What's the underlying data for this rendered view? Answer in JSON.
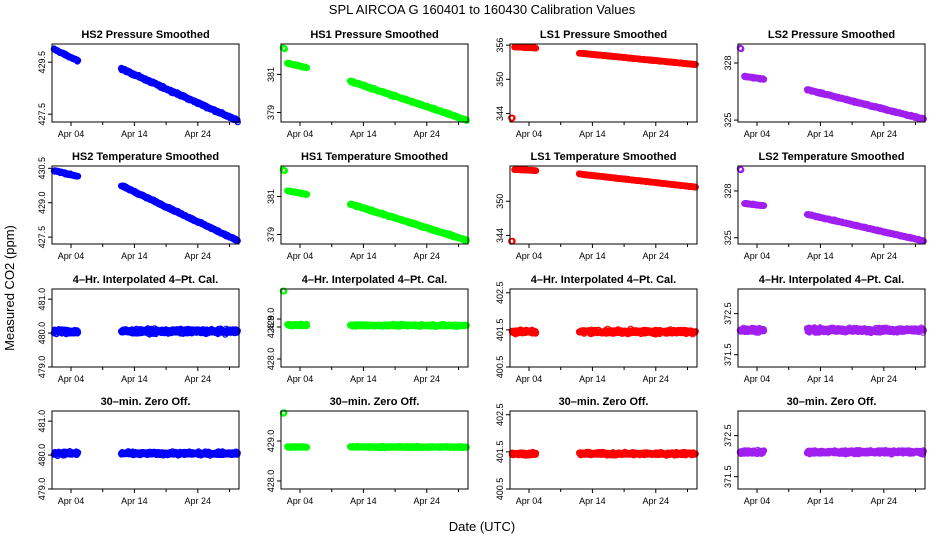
{
  "title": "SPL   AIRCOA G   160401 to 160430   Calibration Values",
  "xlabel": "Date (UTC)",
  "ylabel": "Measured CO2 (ppm)",
  "chart_data": {
    "type": "scatter",
    "x_unit": "day of April 2016",
    "xlim": [
      1,
      30.5
    ],
    "x_ticks": [
      {
        "value": 4,
        "label": "Apr 04"
      },
      {
        "value": 14,
        "label": "Apr 14"
      },
      {
        "value": 24,
        "label": "Apr 24"
      }
    ],
    "columns": [
      {
        "name": "HS2",
        "color": "#0000ff"
      },
      {
        "name": "HS1",
        "color": "#00ff00"
      },
      {
        "name": "LS1",
        "color": "#ff0000"
      },
      {
        "name": "LS2",
        "color": "#a020f0"
      }
    ],
    "gap": [
      5.3,
      11.7
    ],
    "panels": [
      {
        "title": "HS2 Pressure Smoothed",
        "row": 0,
        "col": 0,
        "ylim": [
          427.2,
          430.2
        ],
        "yticks": [
          427.5,
          429.5
        ],
        "segments": [
          {
            "x": [
              1.3,
              5.1
            ],
            "y": [
              430.0,
              429.55
            ],
            "noise": 0.05
          },
          {
            "x": [
              11.9,
              30.3
            ],
            "y": [
              429.25,
              427.25
            ],
            "noise": 0.06
          }
        ]
      },
      {
        "title": "HS1 Pressure Smoothed",
        "row": 0,
        "col": 1,
        "ylim": [
          378.5,
          382.6
        ],
        "yticks": [
          379,
          381
        ],
        "segments": [
          {
            "x": [
              1.3,
              1.6
            ],
            "y": [
              382.4,
              382.35
            ],
            "noise": 0.03
          },
          {
            "x": [
              2.0,
              5.1
            ],
            "y": [
              381.6,
              381.35
            ],
            "noise": 0.05
          },
          {
            "x": [
              11.9,
              30.3
            ],
            "y": [
              380.65,
              378.6
            ],
            "noise": 0.07
          }
        ]
      },
      {
        "title": "LS1 Pressure Smoothed",
        "row": 0,
        "col": 2,
        "ylim": [
          342.5,
          356.2
        ],
        "yticks": [
          344,
          350,
          356
        ],
        "segments": [
          {
            "x": [
              1.2,
              1.4
            ],
            "y": [
              343.2,
              343.2
            ],
            "noise": 0.05
          },
          {
            "x": [
              1.7,
              5.1
            ],
            "y": [
              355.7,
              355.5
            ],
            "noise": 0.08
          },
          {
            "x": [
              11.9,
              30.3
            ],
            "y": [
              354.6,
              352.6
            ],
            "noise": 0.1
          }
        ]
      },
      {
        "title": "LS2 Pressure Smoothed",
        "row": 0,
        "col": 3,
        "ylim": [
          324.9,
          329.0
        ],
        "yticks": [
          325,
          328
        ],
        "segments": [
          {
            "x": [
              1.3,
              1.5
            ],
            "y": [
              328.8,
              328.75
            ],
            "noise": 0.03
          },
          {
            "x": [
              2.0,
              5.1
            ],
            "y": [
              327.3,
              327.15
            ],
            "noise": 0.05
          },
          {
            "x": [
              11.9,
              30.3
            ],
            "y": [
              326.6,
              325.05
            ],
            "noise": 0.06
          }
        ]
      },
      {
        "title": "HS2 Temperature Smoothed",
        "row": 1,
        "col": 0,
        "ylim": [
          427.2,
          430.6
        ],
        "yticks": [
          427.5,
          429.0,
          430.5
        ],
        "segments": [
          {
            "x": [
              1.3,
              5.1
            ],
            "y": [
              430.4,
              430.15
            ],
            "noise": 0.05
          },
          {
            "x": [
              11.9,
              30.3
            ],
            "y": [
              429.75,
              427.35
            ],
            "noise": 0.06
          }
        ]
      },
      {
        "title": "HS1 Temperature Smoothed",
        "row": 1,
        "col": 1,
        "ylim": [
          378.5,
          382.6
        ],
        "yticks": [
          379,
          381
        ],
        "segments": [
          {
            "x": [
              1.3,
              1.6
            ],
            "y": [
              382.4,
              382.35
            ],
            "noise": 0.03
          },
          {
            "x": [
              2.0,
              5.1
            ],
            "y": [
              381.3,
              381.1
            ],
            "noise": 0.05
          },
          {
            "x": [
              11.9,
              30.3
            ],
            "y": [
              380.6,
              378.7
            ],
            "noise": 0.07
          }
        ]
      },
      {
        "title": "LS1 Temperature Smoothed",
        "row": 1,
        "col": 2,
        "ylim": [
          342.5,
          356.2
        ],
        "yticks": [
          344,
          350
        ],
        "segments": [
          {
            "x": [
              1.2,
              1.4
            ],
            "y": [
              343.0,
              343.0
            ],
            "noise": 0.05
          },
          {
            "x": [
              1.7,
              5.1
            ],
            "y": [
              355.6,
              355.4
            ],
            "noise": 0.08
          },
          {
            "x": [
              11.9,
              30.3
            ],
            "y": [
              354.8,
              352.5
            ],
            "noise": 0.1
          }
        ]
      },
      {
        "title": "LS2 Temperature Smoothed",
        "row": 1,
        "col": 3,
        "ylim": [
          324.6,
          329.6
        ],
        "yticks": [
          325,
          328
        ],
        "segments": [
          {
            "x": [
              1.3,
              1.5
            ],
            "y": [
              329.4,
              329.35
            ],
            "noise": 0.03
          },
          {
            "x": [
              2.0,
              5.1
            ],
            "y": [
              327.2,
              327.05
            ],
            "noise": 0.05
          },
          {
            "x": [
              11.9,
              30.3
            ],
            "y": [
              326.5,
              324.8
            ],
            "noise": 0.06
          }
        ]
      },
      {
        "title": "4–Hr. Interpolated 4–Pt. Cal.",
        "row": 2,
        "col": 0,
        "ylim": [
          479.0,
          481.3
        ],
        "yticks": [
          479.0,
          480.0,
          481.0
        ],
        "segments": [
          {
            "x": [
              1.3,
              5.1
            ],
            "y": [
              480.05,
              480.05
            ],
            "noise": 0.1
          },
          {
            "x": [
              11.9,
              30.3
            ],
            "y": [
              480.05,
              480.05
            ],
            "noise": 0.1
          }
        ]
      },
      {
        "title": "4–Hr. Interpolated 4–Pt. Cal.",
        "row": 2,
        "col": 1,
        "ylim": [
          427.8,
          429.75
        ],
        "yticks": [
          428.0,
          428.8,
          429.0
        ],
        "segments": [
          {
            "x": [
              1.3,
              1.5
            ],
            "y": [
              429.7,
              429.7
            ],
            "noise": 0.02
          },
          {
            "x": [
              2.0,
              5.1
            ],
            "y": [
              428.85,
              428.85
            ],
            "noise": 0.04
          },
          {
            "x": [
              11.9,
              30.3
            ],
            "y": [
              428.84,
              428.84
            ],
            "noise": 0.04
          }
        ]
      },
      {
        "title": "4–Hr. Interpolated 4–Pt. Cal.",
        "row": 2,
        "col": 2,
        "ylim": [
          400.5,
          402.6
        ],
        "yticks": [
          400.5,
          401.5,
          402.5
        ],
        "segments": [
          {
            "x": [
              1.3,
              5.1
            ],
            "y": [
              401.45,
              401.45
            ],
            "noise": 0.08
          },
          {
            "x": [
              11.9,
              30.3
            ],
            "y": [
              401.45,
              401.45
            ],
            "noise": 0.08
          }
        ]
      },
      {
        "title": "4–Hr. Interpolated 4–Pt. Cal.",
        "row": 2,
        "col": 3,
        "ylim": [
          371.2,
          373.1
        ],
        "yticks": [
          371.5,
          372.5
        ],
        "segments": [
          {
            "x": [
              1.3,
              5.1
            ],
            "y": [
              372.1,
              372.1
            ],
            "noise": 0.08
          },
          {
            "x": [
              11.9,
              30.3
            ],
            "y": [
              372.1,
              372.1
            ],
            "noise": 0.08
          }
        ]
      },
      {
        "title": "30–min. Zero Off.",
        "row": 3,
        "col": 0,
        "ylim": [
          479.0,
          481.3
        ],
        "yticks": [
          479.0,
          480.0,
          481.0
        ],
        "segments": [
          {
            "x": [
              1.3,
              5.1
            ],
            "y": [
              480.05,
              480.05
            ],
            "noise": 0.08
          },
          {
            "x": [
              11.9,
              30.3
            ],
            "y": [
              480.05,
              480.05
            ],
            "noise": 0.07
          }
        ]
      },
      {
        "title": "30–min. Zero Off.",
        "row": 3,
        "col": 1,
        "ylim": [
          427.8,
          429.75
        ],
        "yticks": [
          428.0,
          429.0
        ],
        "segments": [
          {
            "x": [
              1.3,
              1.5
            ],
            "y": [
              429.7,
              429.7
            ],
            "noise": 0.02
          },
          {
            "x": [
              2.0,
              5.1
            ],
            "y": [
              428.85,
              428.85
            ],
            "noise": 0.03
          },
          {
            "x": [
              11.9,
              30.3
            ],
            "y": [
              428.85,
              428.85
            ],
            "noise": 0.03
          }
        ]
      },
      {
        "title": "30–min. Zero Off.",
        "row": 3,
        "col": 2,
        "ylim": [
          400.5,
          402.6
        ],
        "yticks": [
          400.5,
          401.5,
          402.5
        ],
        "segments": [
          {
            "x": [
              1.3,
              5.1
            ],
            "y": [
              401.45,
              401.45
            ],
            "noise": 0.06
          },
          {
            "x": [
              11.9,
              30.3
            ],
            "y": [
              401.45,
              401.45
            ],
            "noise": 0.06
          }
        ]
      },
      {
        "title": "30–min. Zero Off.",
        "row": 3,
        "col": 3,
        "ylim": [
          371.2,
          373.1
        ],
        "yticks": [
          371.5,
          372.5
        ],
        "segments": [
          {
            "x": [
              1.3,
              5.1
            ],
            "y": [
              372.1,
              372.1
            ],
            "noise": 0.06
          },
          {
            "x": [
              11.9,
              30.3
            ],
            "y": [
              372.1,
              372.1
            ],
            "noise": 0.06
          }
        ]
      }
    ]
  }
}
